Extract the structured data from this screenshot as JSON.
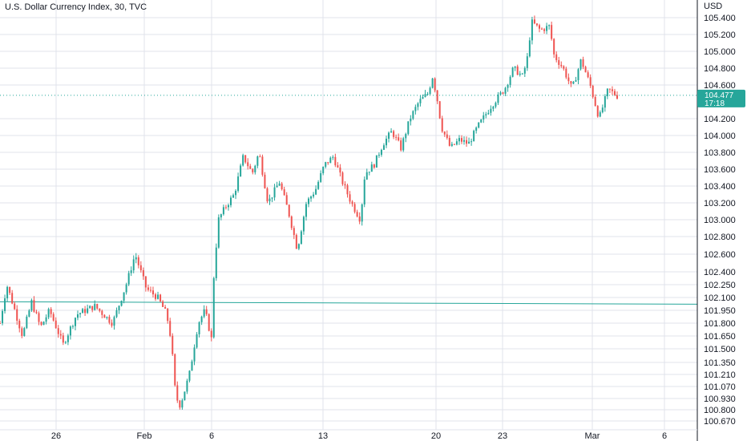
{
  "chart_data": {
    "type": "candlestick",
    "title": "U.S. Dollar Currency Index, 30, TVC",
    "currency_label": "USD",
    "y_axis_ticks": [
      "105.400",
      "105.200",
      "105.000",
      "104.800",
      "104.600",
      "104.200",
      "104.000",
      "103.800",
      "103.600",
      "103.400",
      "103.200",
      "103.000",
      "102.800",
      "102.600",
      "102.400",
      "102.250",
      "102.100",
      "101.950",
      "101.800",
      "101.650",
      "101.500",
      "101.350",
      "101.210",
      "101.070",
      "100.930",
      "100.800",
      "100.670"
    ],
    "x_axis_ticks": [
      "26",
      "Feb",
      "6",
      "13",
      "20",
      "23",
      "Mar",
      "6"
    ],
    "current_price": {
      "value": "104.477",
      "countdown": "17:18",
      "color": "#26a69a"
    },
    "horizontal_line": {
      "value": 102.05,
      "color": "#26a69a"
    },
    "colors": {
      "up": "#26a69a",
      "down": "#ef5350",
      "grid": "#e0e3eb"
    },
    "series_path": [
      [
        0,
        101.8
      ],
      [
        3,
        102.25
      ],
      [
        6,
        102.0
      ],
      [
        10,
        101.65
      ],
      [
        14,
        102.05
      ],
      [
        18,
        101.75
      ],
      [
        22,
        101.95
      ],
      [
        28,
        101.55
      ],
      [
        34,
        101.9
      ],
      [
        42,
        102.0
      ],
      [
        50,
        101.8
      ],
      [
        56,
        102.25
      ],
      [
        60,
        102.6
      ],
      [
        65,
        102.2
      ],
      [
        70,
        102.1
      ],
      [
        74,
        101.9
      ],
      [
        76,
        101.6
      ],
      [
        78,
        100.95
      ],
      [
        80,
        100.85
      ],
      [
        84,
        101.2
      ],
      [
        88,
        101.8
      ],
      [
        91,
        101.95
      ],
      [
        94,
        101.6
      ],
      [
        95,
        102.4
      ],
      [
        97,
        103.0
      ],
      [
        100,
        103.15
      ],
      [
        104,
        103.3
      ],
      [
        108,
        103.75
      ],
      [
        112,
        103.55
      ],
      [
        115,
        103.8
      ],
      [
        119,
        103.2
      ],
      [
        124,
        103.45
      ],
      [
        128,
        103.1
      ],
      [
        132,
        102.65
      ],
      [
        136,
        103.2
      ],
      [
        140,
        103.35
      ],
      [
        144,
        103.65
      ],
      [
        148,
        103.75
      ],
      [
        150,
        103.6
      ],
      [
        152,
        103.45
      ],
      [
        156,
        103.2
      ],
      [
        160,
        103.0
      ],
      [
        162,
        103.55
      ],
      [
        166,
        103.65
      ],
      [
        170,
        103.9
      ],
      [
        174,
        104.05
      ],
      [
        178,
        103.85
      ],
      [
        182,
        104.2
      ],
      [
        186,
        104.4
      ],
      [
        190,
        104.5
      ],
      [
        192,
        104.7
      ],
      [
        194,
        104.45
      ],
      [
        196,
        104.1
      ],
      [
        200,
        103.85
      ],
      [
        204,
        103.95
      ],
      [
        208,
        103.9
      ],
      [
        212,
        104.1
      ],
      [
        218,
        104.35
      ],
      [
        224,
        104.55
      ],
      [
        228,
        104.8
      ],
      [
        232,
        104.7
      ],
      [
        234,
        104.9
      ],
      [
        236,
        105.35
      ],
      [
        240,
        105.25
      ],
      [
        244,
        105.3
      ],
      [
        246,
        104.95
      ],
      [
        250,
        104.8
      ],
      [
        254,
        104.55
      ],
      [
        258,
        104.9
      ],
      [
        262,
        104.6
      ],
      [
        266,
        104.2
      ],
      [
        270,
        104.55
      ],
      [
        274,
        104.47
      ]
    ]
  }
}
